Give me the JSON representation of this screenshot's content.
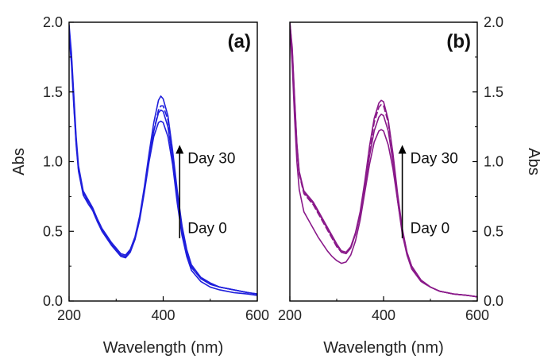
{
  "chart_data": [
    {
      "type": "line",
      "panel_label": "(a)",
      "xlabel": "Wavelength (nm)",
      "ylabel": "Abs",
      "ylabel_side": "left",
      "xlim": [
        200,
        600
      ],
      "ylim": [
        0.0,
        2.0
      ],
      "x_ticks": [
        "200",
        "400",
        "600"
      ],
      "y_ticks": [
        "0.0",
        "0.5",
        "1.0",
        "1.5",
        "2.0"
      ],
      "color": "#1f1fdc",
      "annotation_top": "Day 30",
      "annotation_bottom": "Day 0",
      "arrow_x": 435,
      "arrow_from": 0.45,
      "arrow_to": 1.12,
      "series": [
        {
          "style": "solid",
          "x": [
            200,
            205,
            210,
            215,
            220,
            230,
            240,
            250,
            260,
            270,
            280,
            290,
            300,
            310,
            320,
            330,
            340,
            350,
            360,
            370,
            380,
            390,
            395,
            400,
            410,
            420,
            430,
            440,
            450,
            460,
            480,
            500,
            520,
            550,
            580,
            600
          ],
          "y": [
            1.95,
            1.75,
            1.45,
            1.15,
            0.95,
            0.78,
            0.72,
            0.66,
            0.58,
            0.51,
            0.46,
            0.41,
            0.37,
            0.33,
            0.32,
            0.36,
            0.45,
            0.6,
            0.8,
            1.02,
            1.22,
            1.35,
            1.37,
            1.36,
            1.25,
            1.02,
            0.74,
            0.5,
            0.34,
            0.24,
            0.16,
            0.12,
            0.1,
            0.08,
            0.06,
            0.05
          ]
        },
        {
          "style": "solid",
          "x": [
            200,
            205,
            210,
            215,
            220,
            230,
            240,
            250,
            260,
            270,
            280,
            290,
            300,
            310,
            320,
            330,
            340,
            350,
            360,
            370,
            380,
            390,
            395,
            400,
            410,
            420,
            430,
            440,
            450,
            460,
            480,
            500,
            520,
            550,
            580,
            600
          ],
          "y": [
            1.9,
            1.7,
            1.4,
            1.12,
            0.93,
            0.76,
            0.7,
            0.65,
            0.57,
            0.5,
            0.45,
            0.4,
            0.36,
            0.32,
            0.31,
            0.35,
            0.44,
            0.58,
            0.78,
            1.0,
            1.18,
            1.28,
            1.29,
            1.28,
            1.18,
            0.98,
            0.7,
            0.47,
            0.32,
            0.22,
            0.14,
            0.1,
            0.08,
            0.06,
            0.05,
            0.04
          ]
        },
        {
          "style": "dashed",
          "x": [
            200,
            205,
            210,
            215,
            220,
            230,
            240,
            250,
            260,
            270,
            280,
            290,
            300,
            310,
            320,
            330,
            340,
            350,
            360,
            370,
            380,
            390,
            395,
            400,
            410,
            420,
            430,
            440,
            450,
            460,
            480,
            500,
            520,
            550,
            580,
            600
          ],
          "y": [
            1.92,
            1.72,
            1.42,
            1.13,
            0.94,
            0.77,
            0.71,
            0.65,
            0.57,
            0.51,
            0.46,
            0.41,
            0.37,
            0.33,
            0.32,
            0.36,
            0.45,
            0.6,
            0.8,
            1.03,
            1.22,
            1.37,
            1.4,
            1.4,
            1.3,
            1.06,
            0.77,
            0.53,
            0.36,
            0.25,
            0.17,
            0.12,
            0.1,
            0.08,
            0.06,
            0.05
          ]
        },
        {
          "style": "solid",
          "x": [
            200,
            205,
            210,
            215,
            220,
            230,
            240,
            250,
            260,
            270,
            280,
            290,
            300,
            310,
            320,
            330,
            340,
            350,
            360,
            370,
            380,
            390,
            395,
            400,
            410,
            420,
            430,
            440,
            450,
            460,
            480,
            500,
            520,
            550,
            580,
            600
          ],
          "y": [
            1.98,
            1.78,
            1.48,
            1.18,
            0.97,
            0.79,
            0.73,
            0.67,
            0.59,
            0.52,
            0.47,
            0.42,
            0.38,
            0.34,
            0.33,
            0.37,
            0.46,
            0.61,
            0.82,
            1.06,
            1.28,
            1.44,
            1.47,
            1.45,
            1.33,
            1.08,
            0.79,
            0.54,
            0.37,
            0.26,
            0.17,
            0.13,
            0.1,
            0.08,
            0.06,
            0.05
          ]
        }
      ]
    },
    {
      "type": "line",
      "panel_label": "(b)",
      "xlabel": "Wavelength (nm)",
      "ylabel": "Abs",
      "ylabel_side": "right",
      "xlim": [
        200,
        600
      ],
      "ylim": [
        0.0,
        2.0
      ],
      "x_ticks": [
        "200",
        "400",
        "600"
      ],
      "y_ticks": [
        "0.0",
        "0.5",
        "1.0",
        "1.5",
        "2.0"
      ],
      "color": "#8a1a8a",
      "annotation_top": "Day 30",
      "annotation_bottom": "Day 0",
      "arrow_x": 440,
      "arrow_from": 0.45,
      "arrow_to": 1.12,
      "series": [
        {
          "style": "solid",
          "x": [
            200,
            205,
            210,
            215,
            220,
            230,
            240,
            250,
            260,
            270,
            280,
            290,
            300,
            310,
            320,
            330,
            340,
            350,
            360,
            370,
            380,
            390,
            395,
            400,
            410,
            420,
            430,
            440,
            450,
            460,
            480,
            500,
            520,
            550,
            580,
            600
          ],
          "y": [
            2.0,
            1.8,
            1.45,
            1.12,
            0.92,
            0.78,
            0.74,
            0.7,
            0.64,
            0.58,
            0.52,
            0.46,
            0.4,
            0.35,
            0.34,
            0.38,
            0.48,
            0.62,
            0.82,
            1.04,
            1.22,
            1.32,
            1.34,
            1.33,
            1.22,
            1.0,
            0.72,
            0.48,
            0.33,
            0.23,
            0.14,
            0.1,
            0.07,
            0.05,
            0.04,
            0.03
          ]
        },
        {
          "style": "dashed",
          "x": [
            200,
            205,
            210,
            215,
            220,
            230,
            240,
            250,
            260,
            270,
            280,
            290,
            300,
            310,
            320,
            330,
            340,
            350,
            360,
            370,
            380,
            390,
            395,
            400,
            410,
            420,
            430,
            440,
            450,
            460,
            480,
            500,
            520,
            550,
            580,
            600
          ],
          "y": [
            1.98,
            1.78,
            1.43,
            1.11,
            0.91,
            0.77,
            0.73,
            0.69,
            0.63,
            0.57,
            0.51,
            0.45,
            0.39,
            0.35,
            0.34,
            0.38,
            0.48,
            0.62,
            0.84,
            1.08,
            1.28,
            1.39,
            1.41,
            1.4,
            1.28,
            1.04,
            0.75,
            0.5,
            0.34,
            0.24,
            0.14,
            0.1,
            0.07,
            0.05,
            0.04,
            0.03
          ]
        },
        {
          "style": "solid",
          "x": [
            200,
            205,
            210,
            215,
            220,
            230,
            240,
            250,
            260,
            270,
            280,
            290,
            300,
            310,
            320,
            330,
            340,
            350,
            360,
            370,
            380,
            390,
            395,
            400,
            410,
            420,
            430,
            440,
            450,
            460,
            480,
            500,
            520,
            550,
            580,
            600
          ],
          "y": [
            2.0,
            1.82,
            1.47,
            1.13,
            0.93,
            0.79,
            0.75,
            0.71,
            0.65,
            0.59,
            0.53,
            0.47,
            0.41,
            0.36,
            0.35,
            0.39,
            0.49,
            0.64,
            0.86,
            1.11,
            1.31,
            1.42,
            1.44,
            1.43,
            1.3,
            1.06,
            0.77,
            0.52,
            0.35,
            0.25,
            0.15,
            0.1,
            0.07,
            0.05,
            0.04,
            0.03
          ]
        },
        {
          "style": "solid",
          "x": [
            200,
            205,
            210,
            215,
            220,
            230,
            240,
            250,
            260,
            270,
            280,
            290,
            300,
            310,
            320,
            330,
            340,
            350,
            360,
            370,
            380,
            390,
            395,
            400,
            410,
            420,
            430,
            440,
            450,
            460,
            480,
            500,
            520,
            550,
            580,
            600
          ],
          "y": [
            1.96,
            1.7,
            1.32,
            1.0,
            0.8,
            0.64,
            0.58,
            0.52,
            0.46,
            0.41,
            0.36,
            0.32,
            0.29,
            0.27,
            0.28,
            0.33,
            0.43,
            0.58,
            0.78,
            0.98,
            1.14,
            1.22,
            1.23,
            1.22,
            1.12,
            0.95,
            0.72,
            0.5,
            0.35,
            0.25,
            0.15,
            0.1,
            0.07,
            0.05,
            0.04,
            0.03
          ]
        }
      ]
    }
  ]
}
